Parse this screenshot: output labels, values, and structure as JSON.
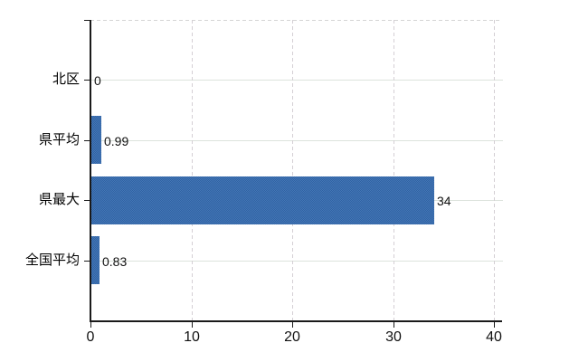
{
  "chart_data": {
    "type": "bar",
    "orientation": "horizontal",
    "title": "",
    "categories": [
      "北区",
      "県平均",
      "県最大",
      "全国平均"
    ],
    "values": [
      0,
      0.99,
      34,
      0.83
    ],
    "data_labels": [
      "0",
      "0.99",
      "34",
      "0.83"
    ],
    "x_tick_labels": [
      "0",
      "10",
      "20",
      "30",
      "40"
    ],
    "x_tick_values": [
      0,
      10,
      20,
      30,
      40
    ],
    "xlim": [
      0,
      40.8
    ],
    "xlabel": "",
    "ylabel": "",
    "grid": true,
    "legend": false,
    "colors": {
      "bar": "#3d6dac",
      "horizontal_gridline": "#dce3dc",
      "vertical_gridline": "#d4cfd4",
      "top_border": "#d4d4d4",
      "axis": "#1a1a1a",
      "text": "#000000"
    }
  }
}
